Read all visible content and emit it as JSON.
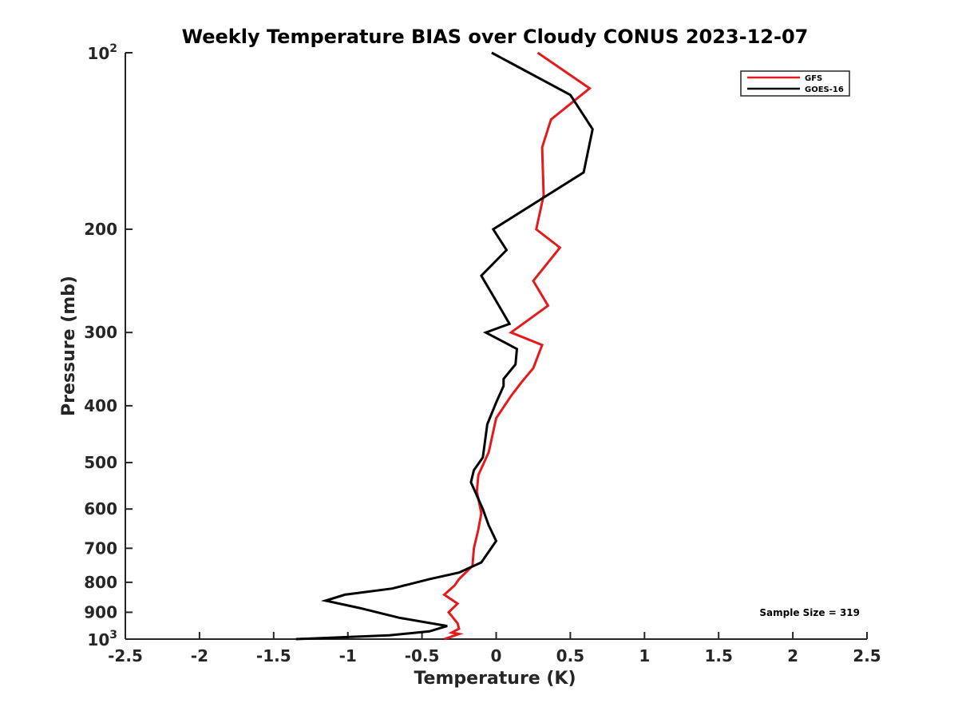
{
  "chart_data": {
    "type": "line",
    "title": "Weekly Temperature BIAS over Cloudy CONUS 2023-12-07",
    "xlabel": "Temperature (K)",
    "ylabel": "Pressure (mb)",
    "xlim": [
      -2.5,
      2.5
    ],
    "ylim": [
      1000,
      100
    ],
    "y_scale": "log",
    "y_reversed": true,
    "x_ticks": [
      -2.5,
      -2,
      -1.5,
      -1,
      -0.5,
      0,
      0.5,
      1,
      1.5,
      2,
      2.5
    ],
    "x_tick_labels": [
      "-2.5",
      "-2",
      "-1.5",
      "-1",
      "-0.5",
      "0",
      "0.5",
      "1",
      "1.5",
      "2",
      "2.5"
    ],
    "y_ticks": [
      200,
      300,
      400,
      500,
      600,
      700,
      800,
      900
    ],
    "y_tick_labels": [
      "200",
      "300",
      "400",
      "500",
      "600",
      "700",
      "800",
      "900"
    ],
    "y_limit_labels": [
      {
        "value": 100,
        "base": "10",
        "exp": "2"
      },
      {
        "value": 1000,
        "base": "10",
        "exp": "3"
      }
    ],
    "grid": false,
    "legend_position": "top-right",
    "series": [
      {
        "name": "GFS",
        "color": "#e41a1c",
        "points": [
          [
            0.28,
            100
          ],
          [
            0.63,
            115
          ],
          [
            0.37,
            130
          ],
          [
            0.31,
            145
          ],
          [
            0.32,
            175
          ],
          [
            0.27,
            200
          ],
          [
            0.43,
            215
          ],
          [
            0.25,
            245
          ],
          [
            0.35,
            270
          ],
          [
            0.1,
            300
          ],
          [
            0.31,
            315
          ],
          [
            0.25,
            345
          ],
          [
            0.17,
            365
          ],
          [
            0.1,
            385
          ],
          [
            0.0,
            420
          ],
          [
            -0.05,
            480
          ],
          [
            -0.12,
            525
          ],
          [
            -0.13,
            560
          ],
          [
            -0.1,
            610
          ],
          [
            -0.12,
            650
          ],
          [
            -0.15,
            700
          ],
          [
            -0.16,
            750
          ],
          [
            -0.25,
            790
          ],
          [
            -0.28,
            810
          ],
          [
            -0.35,
            840
          ],
          [
            -0.26,
            870
          ],
          [
            -0.32,
            900
          ],
          [
            -0.26,
            940
          ],
          [
            -0.25,
            960
          ],
          [
            -0.3,
            975
          ],
          [
            -0.25,
            980
          ],
          [
            -0.35,
            1000
          ]
        ]
      },
      {
        "name": "GOES-16",
        "color": "#000000",
        "points": [
          [
            -0.03,
            100
          ],
          [
            0.5,
            118
          ],
          [
            0.65,
            135
          ],
          [
            0.59,
            160
          ],
          [
            -0.02,
            200
          ],
          [
            0.07,
            217
          ],
          [
            -0.1,
            240
          ],
          [
            0.0,
            265
          ],
          [
            0.09,
            290
          ],
          [
            -0.07,
            300
          ],
          [
            0.14,
            320
          ],
          [
            0.13,
            340
          ],
          [
            0.05,
            360
          ],
          [
            0.05,
            370
          ],
          [
            0.0,
            395
          ],
          [
            -0.06,
            430
          ],
          [
            -0.08,
            470
          ],
          [
            -0.09,
            490
          ],
          [
            -0.15,
            515
          ],
          [
            -0.17,
            540
          ],
          [
            -0.09,
            600
          ],
          [
            -0.05,
            640
          ],
          [
            0.0,
            680
          ],
          [
            -0.1,
            740
          ],
          [
            -0.25,
            770
          ],
          [
            -0.45,
            790
          ],
          [
            -0.7,
            820
          ],
          [
            -1.02,
            840
          ],
          [
            -1.15,
            860
          ],
          [
            -0.92,
            885
          ],
          [
            -0.65,
            920
          ],
          [
            -0.33,
            950
          ],
          [
            -0.45,
            970
          ],
          [
            -0.72,
            985
          ],
          [
            -1.35,
            1000
          ]
        ]
      }
    ],
    "annotations": [
      {
        "text": "Sample Size = 319"
      }
    ]
  }
}
